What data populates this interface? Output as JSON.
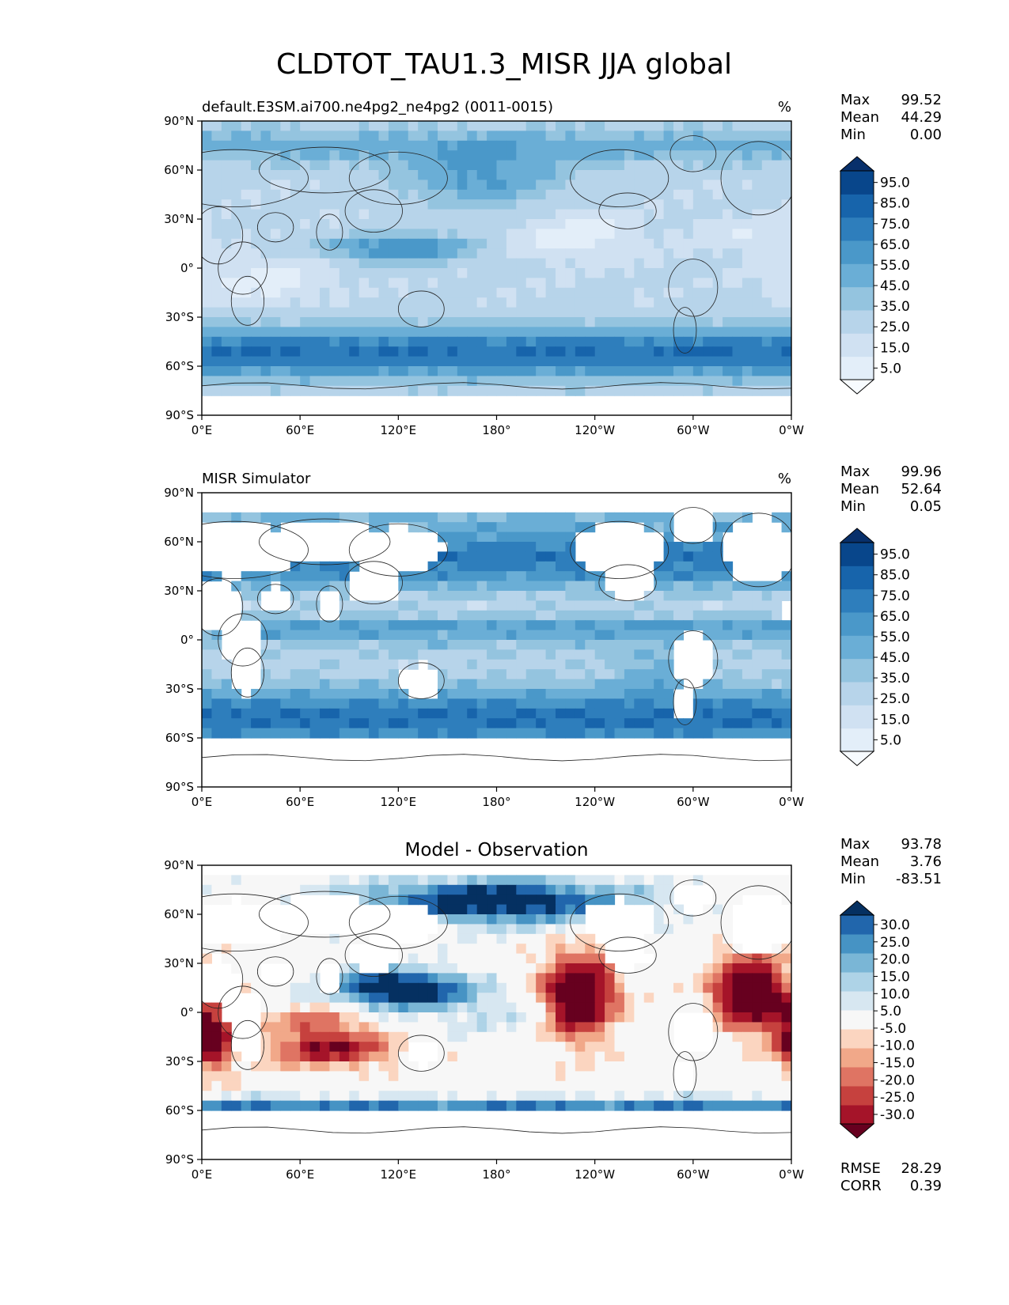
{
  "figure": {
    "title": "CLDTOT_TAU1.3_MISR JJA global"
  },
  "palettes": {
    "blues": [
      "#f7fbff",
      "#e3eef9",
      "#d0e1f2",
      "#b7d4ea",
      "#94c4df",
      "#6aaed6",
      "#4a98c9",
      "#2e7ebc",
      "#1764ab",
      "#08468b",
      "#08306b"
    ],
    "diff": [
      "#67001f",
      "#a51429",
      "#c6413e",
      "#df7463",
      "#f1a889",
      "#fbd5c0",
      "#f7f7f7",
      "#d7e7f1",
      "#aed3e7",
      "#7ab6d6",
      "#4693c4",
      "#2166ac",
      "#053061"
    ]
  },
  "chart_data": [
    {
      "type": "heatmap",
      "id": "model",
      "title_left": "default.E3SM.ai700.ne4pg2_ne4pg2 (0011-0015)",
      "title_center": "",
      "units": "%",
      "x_ticks": [
        "0°E",
        "60°E",
        "120°E",
        "180°",
        "120°W",
        "60°W",
        "0°W"
      ],
      "y_ticks": [
        "90°N",
        "60°N",
        "30°N",
        "0°",
        "30°S",
        "60°S",
        "90°S"
      ],
      "xlim": [
        0,
        360
      ],
      "ylim": [
        -90,
        90
      ],
      "stats": [
        {
          "label": "Max",
          "value": "99.52"
        },
        {
          "label": "Mean",
          "value": "44.29"
        },
        {
          "label": "Min",
          "value": "0.00"
        }
      ],
      "colorbar": {
        "palette": "blues",
        "levels": [
          0,
          10,
          20,
          30,
          40,
          50,
          60,
          70,
          80,
          90,
          100
        ],
        "ticks": [
          "95.0",
          "85.0",
          "75.0",
          "65.0",
          "55.0",
          "45.0",
          "35.0",
          "25.0",
          "15.0",
          "5.0"
        ]
      },
      "field": "model_cloud_cover"
    },
    {
      "type": "heatmap",
      "id": "obs",
      "title_left": "MISR Simulator",
      "title_center": "",
      "units": "%",
      "x_ticks": [
        "0°E",
        "60°E",
        "120°E",
        "180°",
        "120°W",
        "60°W",
        "0°W"
      ],
      "y_ticks": [
        "90°N",
        "60°N",
        "30°N",
        "0°",
        "30°S",
        "60°S",
        "90°S"
      ],
      "xlim": [
        0,
        360
      ],
      "ylim": [
        -90,
        90
      ],
      "stats": [
        {
          "label": "Max",
          "value": "99.96"
        },
        {
          "label": "Mean",
          "value": "52.64"
        },
        {
          "label": "Min",
          "value": "0.05"
        }
      ],
      "colorbar": {
        "palette": "blues",
        "levels": [
          0,
          10,
          20,
          30,
          40,
          50,
          60,
          70,
          80,
          90,
          100
        ],
        "ticks": [
          "95.0",
          "85.0",
          "75.0",
          "65.0",
          "55.0",
          "45.0",
          "35.0",
          "25.0",
          "15.0",
          "5.0"
        ]
      },
      "field": "observed_cloud_cover_ocean_only"
    },
    {
      "type": "heatmap",
      "id": "diff",
      "title_left": "",
      "title_center": "Model - Observation",
      "units": "",
      "x_ticks": [
        "0°E",
        "60°E",
        "120°E",
        "180°",
        "120°W",
        "60°W",
        "0°W"
      ],
      "y_ticks": [
        "90°N",
        "60°N",
        "30°N",
        "0°",
        "30°S",
        "60°S",
        "90°S"
      ],
      "xlim": [
        0,
        360
      ],
      "ylim": [
        -90,
        90
      ],
      "stats": [
        {
          "label": "Max",
          "value": "93.78"
        },
        {
          "label": "Mean",
          "value": "3.76"
        },
        {
          "label": "Min",
          "value": "-83.51"
        }
      ],
      "colorbar": {
        "palette": "diff",
        "levels": [
          -35,
          -30,
          -25,
          -20,
          -15,
          -10,
          -5,
          5,
          10,
          15,
          20,
          25,
          30,
          35
        ],
        "ticks": [
          "30.0",
          "25.0",
          "20.0",
          "15.0",
          "10.0",
          "5.0",
          "-5.0",
          "-10.0",
          "-15.0",
          "-20.0",
          "-25.0",
          "-30.0"
        ]
      },
      "extra_stats": [
        {
          "label": "RMSE",
          "value": "28.29"
        },
        {
          "label": "CORR",
          "value": "0.39"
        }
      ],
      "field": "model_minus_observation"
    }
  ]
}
